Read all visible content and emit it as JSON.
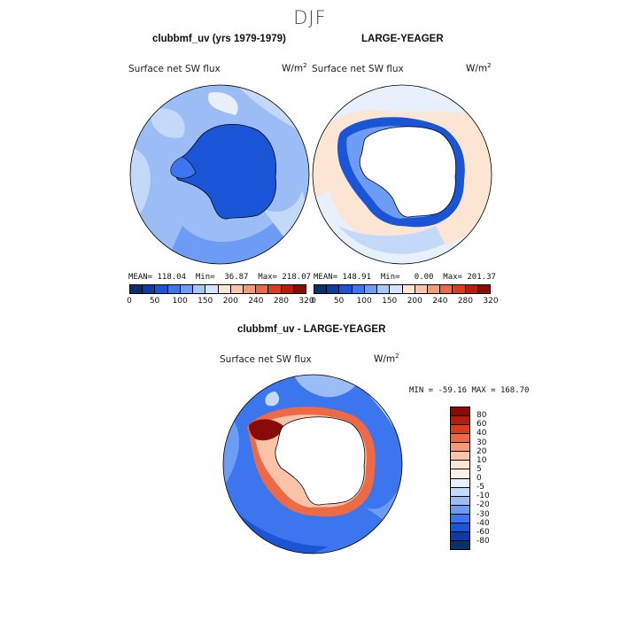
{
  "season": "DJF",
  "panels": {
    "left": {
      "title": "clubbmf_uv (yrs 1979-1979)",
      "variable": "Surface net SW flux",
      "units": "W/m",
      "stats": "MEAN= 118.04  Min=  36.87  Max= 218.07"
    },
    "right": {
      "title": "LARGE-YEAGER",
      "variable": "Surface net SW flux",
      "units": "W/m",
      "stats": "MEAN= 148.91  Min=   0.00  Max= 201.37"
    },
    "diff": {
      "title": "clubbmf_uv - LARGE-YEAGER",
      "variable": "Surface net SW flux",
      "units": "W/m",
      "stats": "MIN = -59.16 MAX = 168.70"
    }
  },
  "units_exponent": "2",
  "colorbar_top": {
    "labels": [
      "0",
      "50",
      "100",
      "150",
      "200",
      "240",
      "280",
      "320"
    ],
    "colors": [
      "#08306b",
      "#0a3ca8",
      "#1a55d8",
      "#3b76ee",
      "#6c9cf3",
      "#a8c6f6",
      "#d6e4fb",
      "#fde5d3",
      "#fbc4a8",
      "#f59a76",
      "#ee6a45",
      "#dd3a1e",
      "#b81a0c",
      "#8a0a05"
    ]
  },
  "colorbar_diff": {
    "labels": [
      "80",
      "60",
      "40",
      "30",
      "20",
      "10",
      "5",
      "0",
      "-5",
      "-10",
      "-20",
      "-30",
      "-40",
      "-60",
      "-80"
    ],
    "colors": [
      "#8a0a05",
      "#b81a0c",
      "#dd3a1e",
      "#ee6a45",
      "#f59a76",
      "#fbc4a8",
      "#fde5d3",
      "#fdf1e8",
      "#e8f0fc",
      "#c4d8f8",
      "#9bbcf4",
      "#6c9cf3",
      "#3b76ee",
      "#1a55d8",
      "#0a3ca8",
      "#08306b"
    ]
  }
}
